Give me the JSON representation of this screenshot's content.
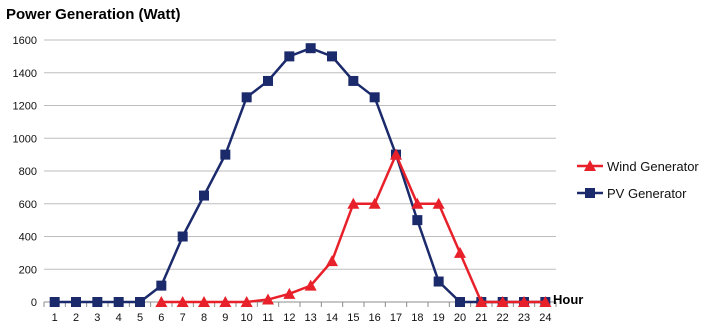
{
  "chart_data": {
    "type": "line",
    "title": "Power Generation (Watt)",
    "xlabel": "Hour",
    "ylabel": "",
    "categories": [
      "1",
      "2",
      "3",
      "4",
      "5",
      "6",
      "7",
      "8",
      "9",
      "10",
      "11",
      "12",
      "13",
      "14",
      "15",
      "16",
      "17",
      "18",
      "19",
      "20",
      "21",
      "22",
      "23",
      "24"
    ],
    "yticks": [
      0,
      200,
      400,
      600,
      800,
      1000,
      1200,
      1400,
      1600
    ],
    "ylim": [
      0,
      1600
    ],
    "grid": true,
    "legend_position": "right",
    "series": [
      {
        "name": "Wind Generator",
        "color": "#e8202a",
        "marker": "triangle",
        "values": [
          null,
          null,
          null,
          null,
          null,
          0,
          0,
          0,
          0,
          0,
          15,
          50,
          100,
          250,
          600,
          600,
          900,
          600,
          600,
          300,
          0,
          0,
          0,
          0
        ]
      },
      {
        "name": "PV Generator",
        "color": "#1b2a6b",
        "marker": "square",
        "values": [
          0,
          0,
          0,
          0,
          0,
          100,
          400,
          650,
          900,
          1250,
          1350,
          1500,
          1550,
          1500,
          1350,
          1250,
          900,
          500,
          125,
          0,
          0,
          0,
          0,
          0
        ]
      }
    ]
  }
}
